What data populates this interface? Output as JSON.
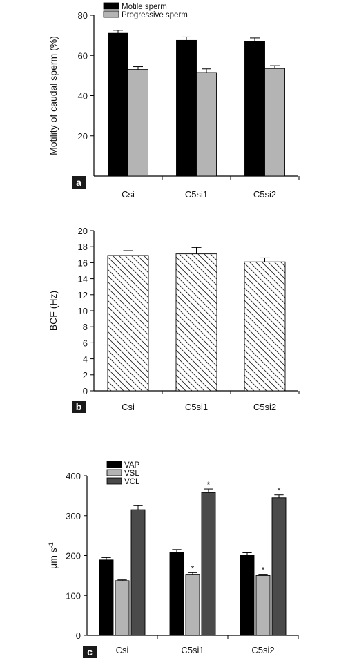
{
  "colors": {
    "motile": "#000000",
    "progressive": "#b4b4b4",
    "bcf_fill": "#ffffff",
    "vap": "#000000",
    "vsl": "#b4b4b4",
    "vcl": "#4a4a4a",
    "panel_badge_bg": "#1a1a1a",
    "panel_badge_fg": "#ffffff"
  },
  "chart_data": [
    {
      "panel": "a",
      "type": "bar",
      "ylabel": "Motility of caudal sperm (%)",
      "xlabel": "",
      "ylim": [
        0,
        80
      ],
      "yticks": [
        20,
        40,
        60,
        80
      ],
      "categories": [
        "Csi",
        "C5si1",
        "C5si2"
      ],
      "legend": "top-left",
      "series": [
        {
          "name": "Motile sperm",
          "values": [
            71,
            67.5,
            67
          ],
          "errors": [
            1.5,
            1.7,
            1.7
          ]
        },
        {
          "name": "Progressive sperm",
          "values": [
            53,
            51.5,
            53.5
          ],
          "errors": [
            1.4,
            1.8,
            1.4
          ]
        }
      ]
    },
    {
      "panel": "b",
      "type": "bar",
      "ylabel": "BCF (Hz)",
      "xlabel": "",
      "ylim": [
        0,
        20
      ],
      "yticks": [
        0,
        2,
        4,
        6,
        8,
        10,
        12,
        14,
        16,
        18,
        20
      ],
      "categories": [
        "Csi",
        "C5si1",
        "C5si2"
      ],
      "series": [
        {
          "values": [
            16.9,
            17.1,
            16.1
          ],
          "errors": [
            0.6,
            0.8,
            0.5
          ]
        }
      ]
    },
    {
      "panel": "c",
      "type": "bar",
      "ylabel": "μm s",
      "ylabel_sup": "-1",
      "xlabel": "",
      "ylim": [
        0,
        400
      ],
      "yticks": [
        0,
        100,
        200,
        300,
        400
      ],
      "categories": [
        "Csi",
        "C5si1",
        "C5si2"
      ],
      "legend": "top-left",
      "series": [
        {
          "name": "VAP",
          "values": [
            189,
            208,
            201
          ],
          "errors": [
            6,
            7,
            6
          ],
          "marks": [
            "",
            "",
            ""
          ]
        },
        {
          "name": "VSL",
          "values": [
            137,
            153,
            150
          ],
          "errors": [
            2,
            4,
            3
          ],
          "marks": [
            "",
            "*",
            "*"
          ]
        },
        {
          "name": "VCL",
          "values": [
            315,
            358,
            345
          ],
          "errors": [
            10,
            9,
            7
          ],
          "marks": [
            "",
            "*",
            "*"
          ]
        }
      ]
    }
  ]
}
